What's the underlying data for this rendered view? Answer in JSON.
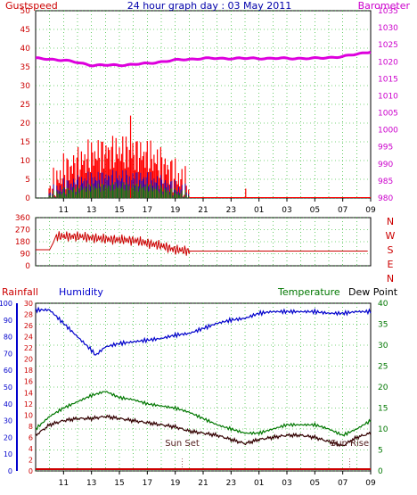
{
  "chart_data": [
    {
      "type": "bar",
      "title": "24 hour graph day : 03 May 2011",
      "left_label": "Gustspeed",
      "right_label": "Barometer",
      "left_ticks": [
        "0",
        "5",
        "10",
        "15",
        "20",
        "25",
        "30",
        "35",
        "40",
        "45",
        "50"
      ],
      "right_ticks": [
        "980",
        "985",
        "990",
        "995",
        "1000",
        "1005",
        "1010",
        "1015",
        "1020",
        "1025",
        "1030",
        "1035"
      ],
      "x_ticks": [
        "11",
        "13",
        "15",
        "17",
        "19",
        "21",
        "23",
        "01",
        "03",
        "05",
        "07",
        "09"
      ],
      "ylim": [
        0,
        50
      ],
      "y2lim": [
        980,
        1035
      ],
      "grid": true,
      "colors": {
        "gust": "#ff0000",
        "wind": "#0000cc",
        "avg": "#008800",
        "baro": "#dd00dd"
      },
      "series": [
        {
          "name": "Gustspeed",
          "hours": [
            9.8,
            11,
            12,
            13,
            14,
            15,
            16,
            17,
            18,
            19,
            19.8,
            20,
            24,
            24.1,
            33
          ],
          "values": [
            0,
            7,
            9,
            11,
            12,
            12,
            12,
            11,
            9,
            6,
            3,
            0,
            0,
            3,
            0
          ]
        },
        {
          "name": "Barometer",
          "hours": [
            9,
            11,
            13,
            15,
            17,
            19,
            21,
            23,
            25,
            27,
            29,
            31,
            33
          ],
          "values": [
            1021,
            1020.5,
            1019,
            1019,
            1019.5,
            1020.5,
            1021,
            1021,
            1021,
            1021,
            1021,
            1021.5,
            1023
          ]
        }
      ]
    },
    {
      "type": "line",
      "right_labels": [
        "N",
        "W",
        "S",
        "E",
        "N"
      ],
      "left_ticks": [
        "0",
        "90",
        "180",
        "270",
        "360"
      ],
      "x_ticks": [
        "11",
        "13",
        "15",
        "17",
        "19",
        "21",
        "23",
        "01",
        "03",
        "05",
        "07",
        "09"
      ],
      "ylim": [
        0,
        360
      ],
      "grid": true,
      "color": "#cc0000",
      "series": [
        {
          "name": "Wind direction",
          "hours": [
            9,
            10,
            10.5,
            12,
            14,
            16,
            17,
            18,
            19,
            20,
            24,
            33
          ],
          "values": [
            120,
            120,
            220,
            220,
            200,
            190,
            170,
            150,
            120,
            110,
            110,
            110
          ]
        }
      ]
    },
    {
      "type": "line",
      "labels": {
        "rainfall": "Rainfall",
        "humidity": "Humidity",
        "temperature": "Temperature",
        "dewpoint": "Dew Point"
      },
      "left1_ticks": [
        "0",
        "2",
        "4",
        "6",
        "8",
        "10",
        "12",
        "14",
        "16",
        "18",
        "20",
        "22",
        "24",
        "26",
        "28",
        "30"
      ],
      "left2_ticks": [
        "0",
        "10",
        "20",
        "30",
        "40",
        "50",
        "60",
        "70",
        "80",
        "90",
        "100"
      ],
      "right_ticks": [
        "0",
        "5",
        "10",
        "15",
        "20",
        "25",
        "30",
        "35",
        "40"
      ],
      "x_ticks": [
        "11",
        "13",
        "15",
        "17",
        "19",
        "21",
        "23",
        "01",
        "03",
        "05",
        "07",
        "09"
      ],
      "annotations": {
        "sunset": "Sun Set",
        "sunrise": "Sun Rise"
      },
      "sunset_hour": 19.5,
      "sunrise_hour": 31.5,
      "ylim_temp": [
        0,
        40
      ],
      "ylim_humidity": [
        0,
        100
      ],
      "grid": true,
      "colors": {
        "humidity": "#0000cc",
        "temperature": "#007700",
        "dewpoint": "#330000",
        "rain": "#cc0000",
        "label_left": "#cc0000",
        "label_hum": "#0000cc",
        "label_temp": "#007700"
      },
      "series": [
        {
          "name": "Humidity",
          "hours": [
            9,
            10,
            11,
            12,
            13,
            13.3,
            14,
            15,
            16,
            17,
            18,
            19,
            20,
            21,
            22,
            23,
            24,
            25,
            26,
            27,
            28,
            29,
            30,
            31,
            32,
            33
          ],
          "values": [
            96,
            96,
            88,
            80,
            72,
            69,
            74,
            76,
            77,
            78,
            79,
            81,
            82,
            85,
            88,
            90,
            91,
            94,
            95,
            95,
            95,
            95,
            94,
            94,
            95,
            95
          ]
        },
        {
          "name": "Temperature",
          "hours": [
            9,
            10,
            11,
            12,
            13,
            14,
            15,
            16,
            17,
            18,
            19,
            20,
            21,
            22,
            23,
            24,
            25,
            26,
            27,
            28,
            29,
            30,
            31,
            32,
            33
          ],
          "values": [
            10,
            13,
            15,
            16.5,
            18,
            19,
            17.5,
            17,
            16,
            15.5,
            15,
            14,
            12.5,
            11,
            10,
            9,
            9,
            10,
            11,
            11,
            11,
            10,
            8.5,
            10,
            12
          ]
        },
        {
          "name": "Dew Point",
          "hours": [
            9,
            10,
            11,
            12,
            13,
            14,
            15,
            16,
            17,
            18,
            19,
            20,
            21,
            22,
            23,
            24,
            25,
            26,
            27,
            28,
            29,
            30,
            31,
            32,
            33
          ],
          "values": [
            8.5,
            11,
            12,
            12.5,
            12.5,
            13,
            12.5,
            12,
            11.5,
            11,
            10.5,
            9.5,
            9,
            8.5,
            7.5,
            6.5,
            7.5,
            8,
            8.5,
            8.5,
            8,
            7,
            6,
            8,
            9
          ]
        },
        {
          "name": "Rainfall",
          "hours": [
            9,
            33
          ],
          "values": [
            0,
            0
          ]
        }
      ]
    }
  ]
}
